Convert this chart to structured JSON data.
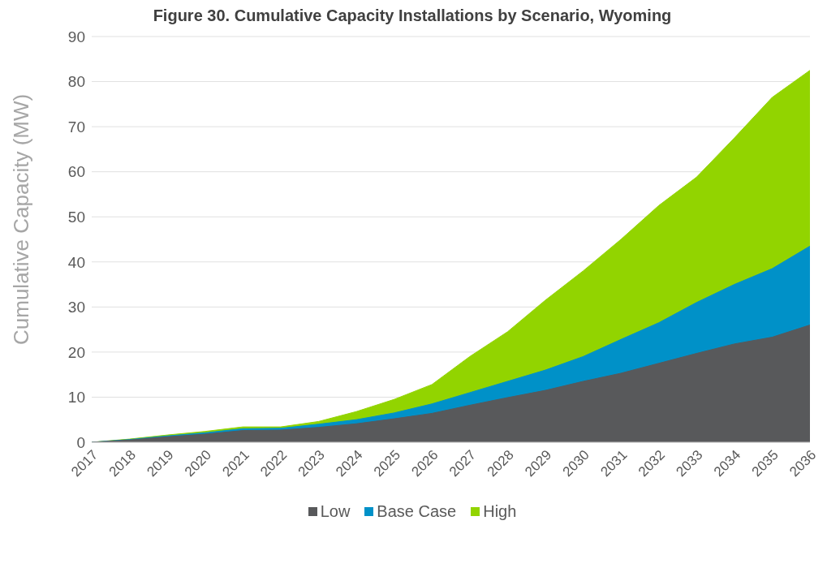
{
  "chart_data": {
    "type": "area",
    "title": "Figure 30. Cumulative Capacity Installations by Scenario, Wyoming",
    "ylabel": "Cumulative Capacity (MW)",
    "categories": [
      "2017",
      "2018",
      "2019",
      "2020",
      "2021",
      "2022",
      "2023",
      "2024",
      "2025",
      "2026",
      "2027",
      "2028",
      "2029",
      "2030",
      "2031",
      "2032",
      "2033",
      "2034",
      "2035",
      "2036"
    ],
    "series": [
      {
        "name": "Low",
        "color": "#58595b",
        "values": [
          0,
          0.5,
          1.2,
          1.8,
          2.6,
          2.7,
          3.3,
          4.1,
          5.2,
          6.4,
          8.2,
          9.9,
          11.5,
          13.5,
          15.3,
          17.5,
          19.7,
          21.8,
          23.3,
          26
        ]
      },
      {
        "name": "Base Case",
        "color": "#0091c8",
        "values": [
          0,
          0.6,
          1.4,
          2.1,
          3.0,
          3.1,
          4.0,
          5.0,
          6.5,
          8.5,
          11,
          13.5,
          16,
          19,
          22.8,
          26.5,
          31,
          35,
          38.5,
          43.5
        ]
      },
      {
        "name": "High",
        "color": "#92d400",
        "values": [
          0,
          0.7,
          1.6,
          2.4,
          3.4,
          3.4,
          4.6,
          6.8,
          9.5,
          12.8,
          19,
          24.5,
          31.5,
          38,
          45,
          52.5,
          58.8,
          67.5,
          76.5,
          82.5
        ]
      }
    ],
    "ylim": [
      0,
      90
    ],
    "yticks": [
      0,
      10,
      20,
      30,
      40,
      50,
      60,
      70,
      80,
      90
    ],
    "grid": "y",
    "legend": "bottom"
  }
}
